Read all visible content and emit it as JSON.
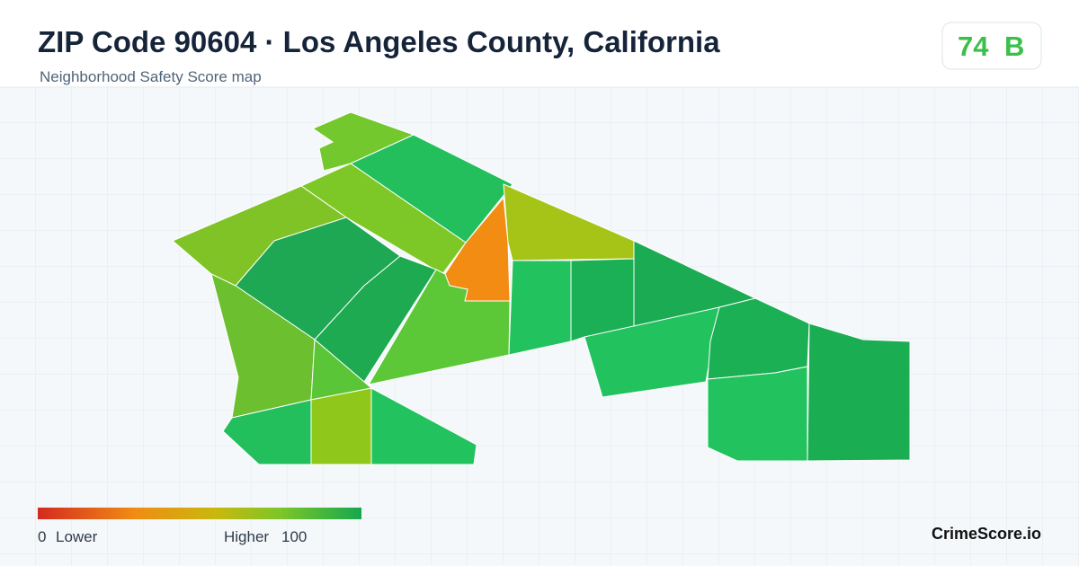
{
  "header": {
    "title": "ZIP Code 90604 · Los Angeles County, California",
    "subtitle": "Neighborhood Safety Score map"
  },
  "score": {
    "value": 74,
    "grade": "B"
  },
  "legend": {
    "min": 0,
    "min_label": "Lower",
    "max_label": "Higher",
    "max": 100
  },
  "brand": "CrimeScore.io"
}
